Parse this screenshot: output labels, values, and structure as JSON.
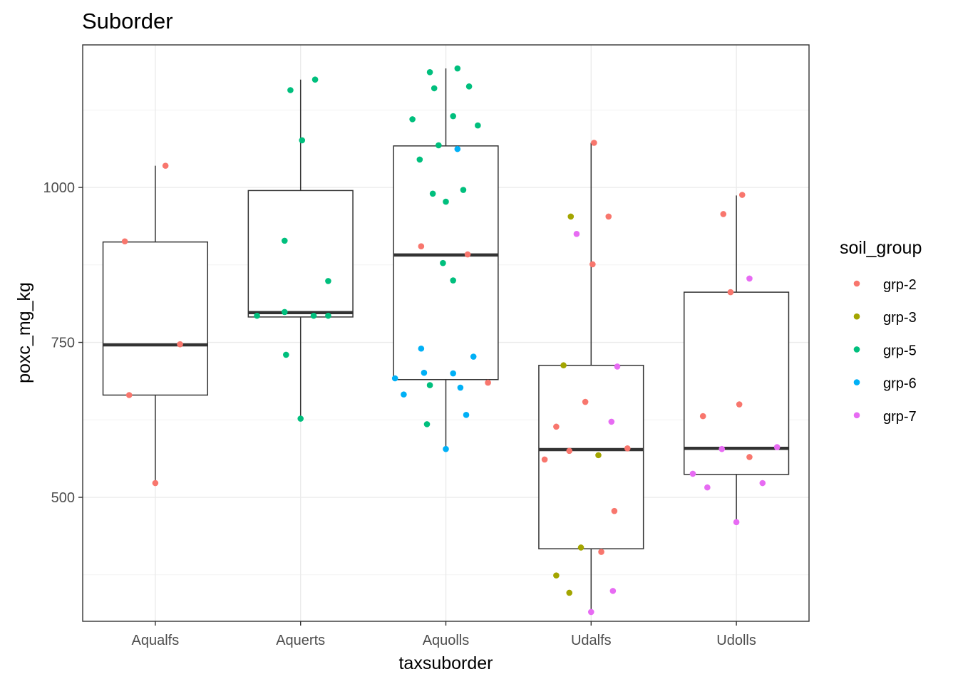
{
  "chart_data": {
    "type": "boxplot",
    "title": "Suborder",
    "xlabel": "taxsuborder",
    "ylabel": "poxc_mg_kg",
    "ylim": [
      300,
      1230
    ],
    "yticks": [
      500,
      750,
      1000
    ],
    "yticks_minor": [
      375,
      625,
      875,
      1125
    ],
    "grid": true,
    "legend": {
      "title": "soil_group",
      "position": "right"
    },
    "categories": [
      "Aqualfs",
      "Aquerts",
      "Aquolls",
      "Udalfs",
      "Udolls"
    ],
    "boxes": [
      {
        "category": "Aqualfs",
        "whisker_low": 523,
        "q1": 665,
        "median": 746,
        "q3": 912,
        "whisker_high": 1035
      },
      {
        "category": "Aquerts",
        "whisker_low": 627,
        "q1": 791,
        "median": 798,
        "q3": 995,
        "whisker_high": 1174
      },
      {
        "category": "Aquolls",
        "whisker_low": 578,
        "q1": 690,
        "median": 891,
        "q3": 1067,
        "whisker_high": 1192
      },
      {
        "category": "Udalfs",
        "whisker_low": 315,
        "q1": 417,
        "median": 577,
        "q3": 713,
        "whisker_high": 1072
      },
      {
        "category": "Udolls",
        "whisker_low": 460,
        "q1": 537,
        "median": 579,
        "q3": 831,
        "whisker_high": 987
      }
    ],
    "series": [
      {
        "name": "grp-2",
        "color": "#F8766D",
        "points": [
          {
            "x": "Aqualfs",
            "y": 1035,
            "j": 0.07
          },
          {
            "x": "Aqualfs",
            "y": 913,
            "j": -0.21
          },
          {
            "x": "Aqualfs",
            "y": 747,
            "j": 0.17
          },
          {
            "x": "Aqualfs",
            "y": 665,
            "j": -0.18
          },
          {
            "x": "Aqualfs",
            "y": 523,
            "j": 0.0
          },
          {
            "x": "Aquolls",
            "y": 905,
            "j": -0.17
          },
          {
            "x": "Aquolls",
            "y": 892,
            "j": 0.15
          },
          {
            "x": "Aquolls",
            "y": 685,
            "j": 0.29
          },
          {
            "x": "Udalfs",
            "y": 1072,
            "j": 0.02
          },
          {
            "x": "Udalfs",
            "y": 953,
            "j": 0.12
          },
          {
            "x": "Udalfs",
            "y": 876,
            "j": 0.01
          },
          {
            "x": "Udalfs",
            "y": 654,
            "j": -0.04
          },
          {
            "x": "Udalfs",
            "y": 614,
            "j": -0.24
          },
          {
            "x": "Udalfs",
            "y": 579,
            "j": 0.25
          },
          {
            "x": "Udalfs",
            "y": 575,
            "j": -0.15
          },
          {
            "x": "Udalfs",
            "y": 561,
            "j": -0.32
          },
          {
            "x": "Udalfs",
            "y": 478,
            "j": 0.16
          },
          {
            "x": "Udalfs",
            "y": 412,
            "j": 0.07
          },
          {
            "x": "Udolls",
            "y": 988,
            "j": 0.04
          },
          {
            "x": "Udolls",
            "y": 957,
            "j": -0.09
          },
          {
            "x": "Udolls",
            "y": 831,
            "j": -0.04
          },
          {
            "x": "Udolls",
            "y": 650,
            "j": 0.02
          },
          {
            "x": "Udolls",
            "y": 631,
            "j": -0.23
          },
          {
            "x": "Udolls",
            "y": 565,
            "j": 0.09
          }
        ]
      },
      {
        "name": "grp-3",
        "color": "#A3A500",
        "points": [
          {
            "x": "Udalfs",
            "y": 953,
            "j": -0.14
          },
          {
            "x": "Udalfs",
            "y": 713,
            "j": -0.19
          },
          {
            "x": "Udalfs",
            "y": 568,
            "j": 0.05
          },
          {
            "x": "Udalfs",
            "y": 419,
            "j": -0.07
          },
          {
            "x": "Udalfs",
            "y": 374,
            "j": -0.24
          },
          {
            "x": "Udalfs",
            "y": 346,
            "j": -0.15
          }
        ]
      },
      {
        "name": "grp-5",
        "color": "#00BF7D",
        "points": [
          {
            "x": "Aquerts",
            "y": 1174,
            "j": 0.1
          },
          {
            "x": "Aquerts",
            "y": 1157,
            "j": -0.07
          },
          {
            "x": "Aquerts",
            "y": 1076,
            "j": 0.01
          },
          {
            "x": "Aquerts",
            "y": 914,
            "j": -0.11
          },
          {
            "x": "Aquerts",
            "y": 849,
            "j": 0.19
          },
          {
            "x": "Aquerts",
            "y": 799,
            "j": -0.11
          },
          {
            "x": "Aquerts",
            "y": 793,
            "j": -0.3
          },
          {
            "x": "Aquerts",
            "y": 793,
            "j": 0.09
          },
          {
            "x": "Aquerts",
            "y": 793,
            "j": 0.19
          },
          {
            "x": "Aquerts",
            "y": 730,
            "j": -0.1
          },
          {
            "x": "Aquerts",
            "y": 627,
            "j": 0.0
          },
          {
            "x": "Aquolls",
            "y": 1192,
            "j": 0.08
          },
          {
            "x": "Aquolls",
            "y": 1186,
            "j": -0.11
          },
          {
            "x": "Aquolls",
            "y": 1163,
            "j": 0.16
          },
          {
            "x": "Aquolls",
            "y": 1160,
            "j": -0.08
          },
          {
            "x": "Aquolls",
            "y": 1115,
            "j": 0.05
          },
          {
            "x": "Aquolls",
            "y": 1110,
            "j": -0.23
          },
          {
            "x": "Aquolls",
            "y": 1100,
            "j": 0.22
          },
          {
            "x": "Aquolls",
            "y": 1068,
            "j": -0.05
          },
          {
            "x": "Aquolls",
            "y": 1045,
            "j": -0.18
          },
          {
            "x": "Aquolls",
            "y": 996,
            "j": 0.12
          },
          {
            "x": "Aquolls",
            "y": 990,
            "j": -0.09
          },
          {
            "x": "Aquolls",
            "y": 977,
            "j": 0.0
          },
          {
            "x": "Aquolls",
            "y": 878,
            "j": -0.02
          },
          {
            "x": "Aquolls",
            "y": 850,
            "j": 0.05
          },
          {
            "x": "Aquolls",
            "y": 681,
            "j": -0.11
          },
          {
            "x": "Aquolls",
            "y": 618,
            "j": -0.13
          }
        ]
      },
      {
        "name": "grp-6",
        "color": "#00B0F6",
        "points": [
          {
            "x": "Aquolls",
            "y": 1062,
            "j": 0.08
          },
          {
            "x": "Aquolls",
            "y": 740,
            "j": -0.17
          },
          {
            "x": "Aquolls",
            "y": 727,
            "j": 0.19
          },
          {
            "x": "Aquolls",
            "y": 701,
            "j": -0.15
          },
          {
            "x": "Aquolls",
            "y": 700,
            "j": 0.05
          },
          {
            "x": "Aquolls",
            "y": 692,
            "j": -0.35
          },
          {
            "x": "Aquolls",
            "y": 677,
            "j": 0.1
          },
          {
            "x": "Aquolls",
            "y": 666,
            "j": -0.29
          },
          {
            "x": "Aquolls",
            "y": 633,
            "j": 0.14
          },
          {
            "x": "Aquolls",
            "y": 578,
            "j": 0.0
          }
        ]
      },
      {
        "name": "grp-7",
        "color": "#E76BF3",
        "points": [
          {
            "x": "Udalfs",
            "y": 925,
            "j": -0.1
          },
          {
            "x": "Udalfs",
            "y": 711,
            "j": 0.18
          },
          {
            "x": "Udalfs",
            "y": 622,
            "j": 0.14
          },
          {
            "x": "Udalfs",
            "y": 349,
            "j": 0.15
          },
          {
            "x": "Udalfs",
            "y": 315,
            "j": 0.0
          },
          {
            "x": "Udolls",
            "y": 853,
            "j": 0.09
          },
          {
            "x": "Udolls",
            "y": 581,
            "j": 0.28
          },
          {
            "x": "Udolls",
            "y": 578,
            "j": -0.1
          },
          {
            "x": "Udolls",
            "y": 538,
            "j": -0.3
          },
          {
            "x": "Udolls",
            "y": 523,
            "j": 0.18
          },
          {
            "x": "Udolls",
            "y": 516,
            "j": -0.2
          },
          {
            "x": "Udolls",
            "y": 460,
            "j": 0.0
          }
        ]
      }
    ]
  }
}
